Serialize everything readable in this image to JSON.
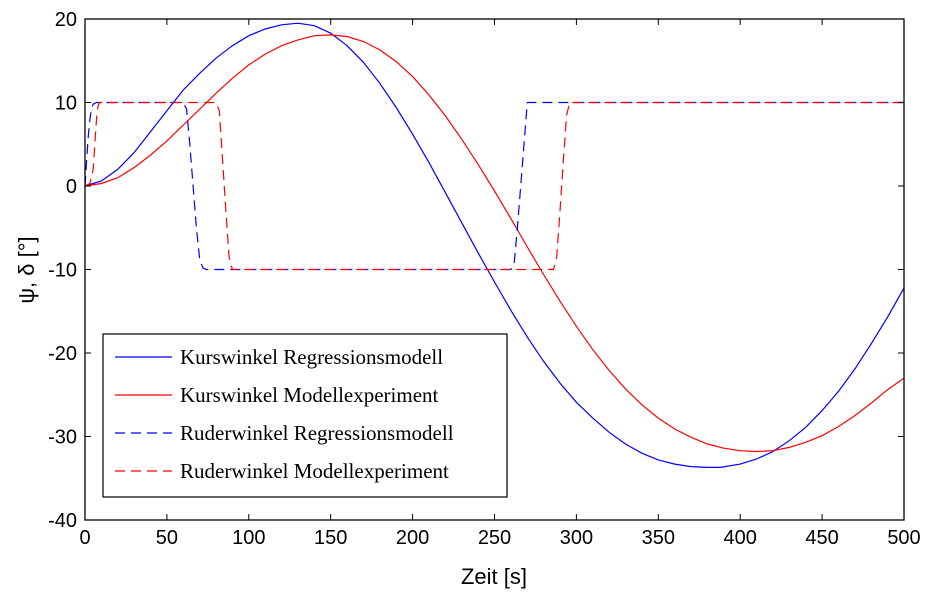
{
  "chart_data": {
    "type": "line",
    "title": "",
    "xlabel": "Zeit [s]",
    "ylabel": "ψ, δ [°]",
    "xlim": [
      0,
      500
    ],
    "ylim": [
      -40,
      20
    ],
    "xticks": [
      0,
      50,
      100,
      150,
      200,
      250,
      300,
      350,
      400,
      450,
      500
    ],
    "yticks": [
      -40,
      -30,
      -20,
      -10,
      0,
      10,
      20
    ],
    "grid": false,
    "legend_position": "bottom-left",
    "series": [
      {
        "name": "Kurswinkel Regressionsmodell",
        "color": "#0000ff",
        "style": "solid",
        "x": [
          0,
          10,
          20,
          30,
          40,
          50,
          60,
          70,
          80,
          90,
          100,
          110,
          120,
          130,
          140,
          150,
          160,
          170,
          180,
          190,
          200,
          210,
          220,
          230,
          240,
          250,
          260,
          270,
          280,
          290,
          300,
          310,
          320,
          330,
          340,
          350,
          360,
          370,
          380,
          388,
          400,
          410,
          420,
          430,
          440,
          450,
          460,
          470,
          480,
          490,
          500
        ],
        "y": [
          0,
          0.6,
          2,
          4,
          6.5,
          9,
          11.5,
          13.5,
          15.3,
          16.8,
          18,
          18.8,
          19.3,
          19.5,
          19.2,
          18.3,
          16.8,
          14.8,
          12.3,
          9.4,
          6.2,
          2.8,
          -0.8,
          -4.4,
          -8.0,
          -11.5,
          -14.9,
          -18.1,
          -21.0,
          -23.6,
          -25.9,
          -27.8,
          -29.5,
          -30.9,
          -32.0,
          -32.8,
          -33.3,
          -33.6,
          -33.7,
          -33.7,
          -33.3,
          -32.7,
          -31.8,
          -30.5,
          -28.9,
          -26.9,
          -24.6,
          -21.9,
          -18.9,
          -15.7,
          -12.2
        ]
      },
      {
        "name": "Kurswinkel Modellexperiment",
        "color": "#ff0000",
        "style": "solid",
        "x": [
          0,
          10,
          20,
          30,
          40,
          50,
          60,
          70,
          80,
          90,
          100,
          110,
          120,
          130,
          140,
          150,
          160,
          170,
          180,
          190,
          200,
          210,
          220,
          230,
          240,
          250,
          260,
          270,
          280,
          290,
          300,
          310,
          320,
          330,
          340,
          350,
          360,
          370,
          380,
          390,
          400,
          410,
          420,
          430,
          440,
          450,
          460,
          470,
          480,
          490,
          500
        ],
        "y": [
          0,
          0.3,
          1,
          2.2,
          3.7,
          5.4,
          7.3,
          9.2,
          11.1,
          12.9,
          14.5,
          15.8,
          16.8,
          17.5,
          18,
          18.1,
          17.9,
          17.3,
          16.3,
          14.9,
          13.1,
          10.9,
          8.4,
          5.6,
          2.6,
          -0.6,
          -3.9,
          -7.3,
          -10.6,
          -13.8,
          -16.8,
          -19.6,
          -22.1,
          -24.3,
          -26.2,
          -27.8,
          -29.1,
          -30.1,
          -30.9,
          -31.4,
          -31.7,
          -31.8,
          -31.7,
          -31.3,
          -30.7,
          -29.9,
          -28.8,
          -27.5,
          -26.0,
          -24.4,
          -23.0
        ]
      },
      {
        "name": "Ruderwinkel Regressionsmodell",
        "color": "#0000ff",
        "style": "dashed",
        "x": [
          0,
          1,
          2,
          3,
          4,
          5,
          7,
          60,
          62,
          64,
          66,
          68,
          70,
          72,
          74,
          260,
          262,
          264,
          266,
          268,
          270,
          500
        ],
        "y": [
          0,
          3,
          6,
          8,
          9.3,
          9.8,
          10,
          10,
          9.2,
          5,
          0,
          -5,
          -8.8,
          -9.8,
          -10,
          -10,
          -9.2,
          -5,
          0,
          5,
          10,
          10
        ]
      },
      {
        "name": "Ruderwinkel Modellexperiment",
        "color": "#ff0000",
        "style": "dashed",
        "x": [
          0,
          3,
          5,
          6,
          7,
          8,
          9,
          80,
          82,
          84,
          86,
          88,
          90,
          286,
          288,
          290,
          292,
          294,
          296,
          500
        ],
        "y": [
          0,
          0.3,
          2,
          5,
          8,
          9.6,
          10,
          10,
          9,
          3,
          -3,
          -8.5,
          -10,
          -10,
          -8.5,
          -3,
          3,
          8.5,
          10,
          10
        ]
      }
    ]
  }
}
